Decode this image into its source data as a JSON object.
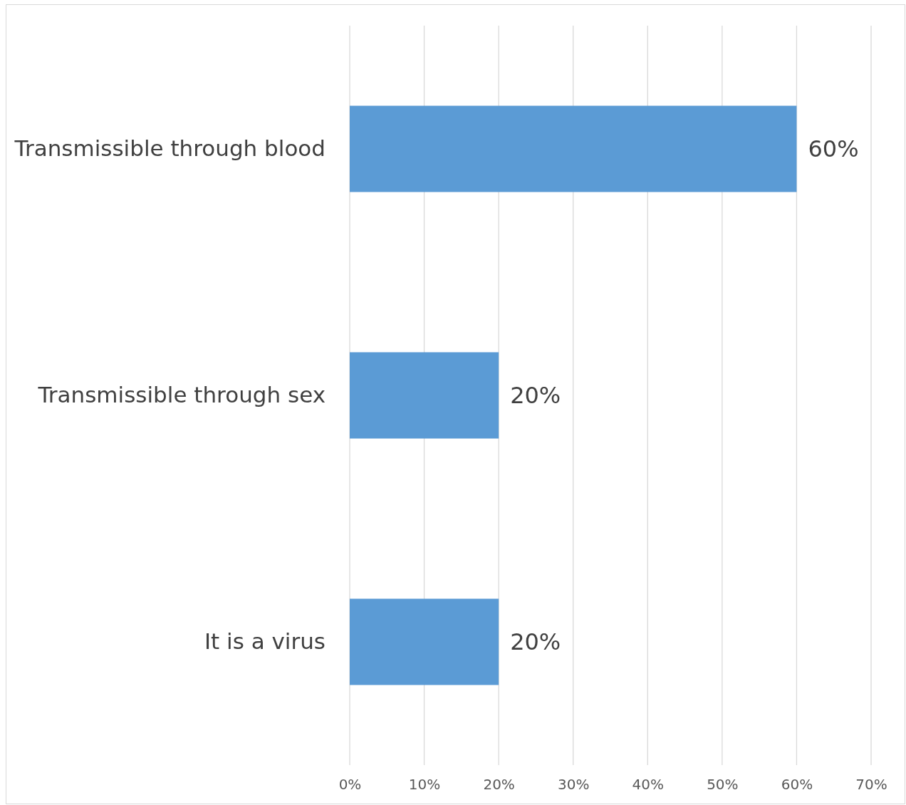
{
  "chart_data": {
    "type": "bar",
    "orientation": "horizontal",
    "categories": [
      "Transmissible through blood",
      "Transmissible through sex",
      "It is a virus"
    ],
    "values": [
      60,
      20,
      20
    ],
    "color": "#5b9bd5",
    "value_labels": [
      "60%",
      "20%",
      "20%"
    ],
    "xlim": [
      0,
      70
    ],
    "xticks": [
      {
        "value": 0,
        "label": "0%"
      },
      {
        "value": 10,
        "label": "10%"
      },
      {
        "value": 20,
        "label": "20%"
      },
      {
        "value": 30,
        "label": "30%"
      },
      {
        "value": 40,
        "label": "40%"
      },
      {
        "value": 50,
        "label": "50%"
      },
      {
        "value": 60,
        "label": "60%"
      },
      {
        "value": 70,
        "label": "70%"
      }
    ],
    "grid": "x"
  }
}
